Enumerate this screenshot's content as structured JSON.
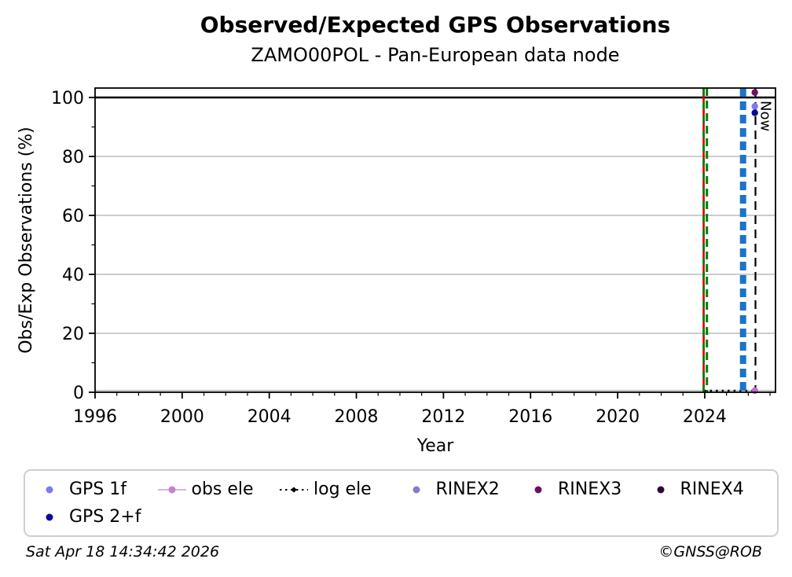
{
  "chart_data": {
    "type": "scatter",
    "title": "Observed/Expected GPS Observations",
    "subtitle": "ZAMO00POL - Pan-European data node",
    "xlabel": "Year",
    "ylabel": "Obs/Exp Observations (%)",
    "axes": {
      "x": {
        "min": 1996,
        "max": 2027.25,
        "major_ticks": [
          1996,
          2000,
          2004,
          2008,
          2012,
          2016,
          2020,
          2024
        ],
        "minor_step": 1
      },
      "y": {
        "min": 0,
        "max": 103.2,
        "major_ticks": [
          0,
          20,
          40,
          60,
          80,
          100
        ],
        "minor_step": 10
      }
    },
    "grid": {
      "horizontal": true,
      "vertical": false,
      "color": "#c4c4c4"
    },
    "hlines": [
      {
        "name": "full-rate-line",
        "y": 100,
        "color": "#000000",
        "style": "solid",
        "width": 2.6
      }
    ],
    "vlines": [
      {
        "name": "event-red",
        "x": 2023.95,
        "color": "#d40000",
        "style": "solid",
        "dash": null,
        "width": 2.6
      },
      {
        "name": "event-green-overlay",
        "x": 2023.95,
        "color": "#008000",
        "style": "dashed",
        "dash": [
          9,
          9
        ],
        "width": 2.6
      },
      {
        "name": "event-green",
        "x": 2024.1,
        "color": "#008000",
        "style": "dashed",
        "dash": [
          10,
          6
        ],
        "width": 3
      },
      {
        "name": "event-blue",
        "x": 2025.76,
        "color": "#1b74c8",
        "style": "dashed",
        "dash": [
          11,
          6
        ],
        "width": 8
      },
      {
        "name": "now-line",
        "x": 2026.33,
        "color": "#000000",
        "style": "dashed",
        "dash": [
          11,
          7
        ],
        "width": 2.2
      }
    ],
    "series": [
      {
        "name": "GPS 1f",
        "color": "#7a7df2",
        "marker": "dot",
        "points": [
          {
            "x": 2026.3,
            "y": 97.0
          }
        ]
      },
      {
        "name": "GPS 2+f",
        "color": "#0a0a90",
        "marker": "dot",
        "points": [
          {
            "x": 2026.3,
            "y": 94.8
          }
        ]
      },
      {
        "name": "obs ele",
        "color": "#b76fc8",
        "line_color": "#ddb3e2",
        "marker": "dot",
        "points": [
          {
            "x": 2026.3,
            "y": 0
          }
        ]
      },
      {
        "name": "log ele",
        "color": "#000000",
        "marker": "dotted-line",
        "points": [
          {
            "x": 2023.97,
            "y": 0
          },
          {
            "x": 2026.3,
            "y": 0
          }
        ]
      },
      {
        "name": "RINEX2",
        "color": "#8a7cc4",
        "marker": "dot",
        "points": []
      },
      {
        "name": "RINEX3",
        "color": "#6e0f69",
        "marker": "dot",
        "points": [
          {
            "x": 2026.3,
            "y": 101.7
          }
        ]
      },
      {
        "name": "RINEX4",
        "color": "#2d0b35",
        "marker": "dot",
        "points": []
      }
    ],
    "annotations": [
      {
        "text": "Now",
        "x": 2026.33,
        "y": 100,
        "rotation": 90
      }
    ]
  },
  "legend": {
    "items": [
      {
        "label": "GPS 1f",
        "marker": "dot",
        "color": "#7a7df2",
        "line_color": null
      },
      {
        "label": "obs ele",
        "marker": "line-dot",
        "color": "#c583cf",
        "line_color": "#dcb2e0"
      },
      {
        "label": "log ele",
        "marker": "dotted-marker",
        "color": "#000000",
        "line_color": "#000000"
      },
      {
        "label": "RINEX2",
        "marker": "dot",
        "color": "#8a7cc4",
        "line_color": null
      },
      {
        "label": "RINEX3",
        "marker": "dot",
        "color": "#6e0f69",
        "line_color": null
      },
      {
        "label": "RINEX4",
        "marker": "dot",
        "color": "#2d0b35",
        "line_color": null
      },
      {
        "label": "GPS 2+f",
        "marker": "dot",
        "color": "#0a0a90",
        "line_color": null
      }
    ]
  },
  "footer": {
    "timestamp": "Sat Apr 18 14:34:42 2026",
    "copyright": "©GNSS@ROB"
  }
}
